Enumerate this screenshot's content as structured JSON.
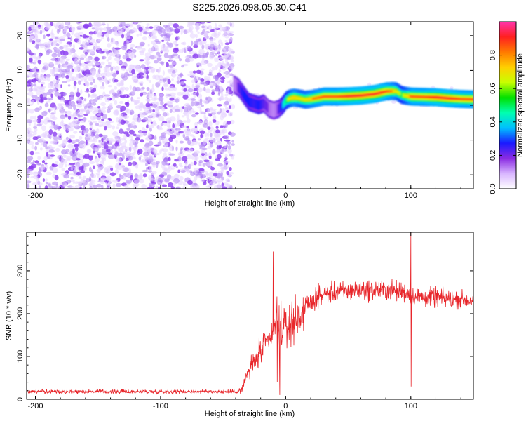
{
  "title": "S225.2026.098.05.30.C41",
  "colors": {
    "snr_line": "#e8262b",
    "noise_scatter": "#8a3cf0",
    "axis": "#000000"
  },
  "chart_data": [
    {
      "type": "heatmap",
      "name": "spectrogram",
      "xlabel": "Height of straight line (km)",
      "ylabel": "Frequency (Hz)",
      "xlim": [
        -207,
        150
      ],
      "ylim": [
        -24,
        24
      ],
      "xticks": [
        -200,
        -100,
        0,
        100
      ],
      "yticks": [
        -20,
        -10,
        0,
        10,
        20
      ],
      "signal_ridge": {
        "x": [
          -42,
          -38,
          -34,
          -30,
          -26,
          -22,
          -18,
          -14,
          -10,
          -6,
          -3,
          0,
          3,
          6,
          10,
          15,
          20,
          30,
          40,
          50,
          60,
          70,
          75,
          80,
          85,
          88,
          92,
          96,
          100,
          110,
          120,
          130,
          140,
          150
        ],
        "freq": [
          6,
          5,
          3,
          1,
          0.5,
          0,
          0.5,
          -1,
          -1.5,
          -1,
          0,
          1.5,
          2,
          2.2,
          2,
          1.6,
          1.8,
          2.5,
          2.5,
          2.6,
          2.8,
          3.2,
          3.6,
          4,
          4.1,
          4,
          3,
          2.7,
          2.5,
          2.4,
          2.3,
          2.0,
          1.8,
          1.7
        ],
        "peak_amplitude": [
          0.3,
          0.4,
          0.5,
          0.5,
          0.45,
          0.5,
          0.4,
          0.35,
          0.3,
          0.4,
          0.55,
          0.7,
          0.8,
          0.85,
          0.8,
          0.8,
          0.85,
          0.9,
          0.9,
          0.95,
          0.95,
          0.95,
          0.95,
          0.9,
          0.85,
          0.8,
          0.7,
          0.8,
          0.9,
          0.9,
          0.95,
          0.95,
          0.9,
          0.9
        ]
      },
      "noise_region_x": [
        -207,
        -42
      ],
      "noise_amplitude_range": [
        0.05,
        0.25
      ]
    },
    {
      "type": "colorbar",
      "name": "amplitude-colorbar",
      "label": "Normalized spectral amplitude",
      "range": [
        0,
        1
      ],
      "ticks": [
        0.0,
        0.2,
        0.4,
        0.6,
        0.8
      ],
      "tick_labels": [
        "0.0",
        "0.2",
        "0.4",
        "0.6",
        "0.8"
      ],
      "colormap": [
        "#ffffff",
        "#d8b5ff",
        "#8a2be2",
        "#1a1aff",
        "#00bfff",
        "#00ffb0",
        "#00e000",
        "#c8ff00",
        "#ffd000",
        "#ff7a00",
        "#ff2020",
        "#ff33aa"
      ]
    },
    {
      "type": "line",
      "name": "snr",
      "xlabel": "Height of straight line (km)",
      "ylabel": "SNR (10 * v/v)",
      "xlim": [
        -207,
        150
      ],
      "ylim": [
        0,
        390
      ],
      "xticks": [
        -200,
        -100,
        0,
        100
      ],
      "yticks": [
        0,
        100,
        200,
        300
      ],
      "x": [
        -207,
        -190,
        -170,
        -150,
        -130,
        -110,
        -90,
        -70,
        -50,
        -40,
        -35,
        -30,
        -25,
        -20,
        -15,
        -10,
        -8,
        -5,
        -2,
        0,
        5,
        10,
        15,
        20,
        25,
        30,
        40,
        50,
        60,
        70,
        80,
        90,
        95,
        98,
        100,
        102,
        105,
        110,
        120,
        130,
        140,
        150
      ],
      "mean": [
        18,
        18,
        18,
        18,
        18,
        18,
        18,
        18,
        18,
        18,
        22,
        65,
        90,
        110,
        130,
        150,
        170,
        180,
        160,
        170,
        180,
        190,
        215,
        225,
        238,
        245,
        250,
        252,
        255,
        255,
        255,
        252,
        250,
        248,
        245,
        240,
        240,
        238,
        238,
        235,
        232,
        230
      ],
      "spikes": [
        {
          "x": -10,
          "y": 345,
          "min": 150
        },
        {
          "x": -7,
          "y": 240,
          "min": 40
        },
        {
          "x": -5,
          "y": 90,
          "min": 10
        },
        {
          "x": 100,
          "y": 390,
          "min": 30
        }
      ]
    }
  ]
}
